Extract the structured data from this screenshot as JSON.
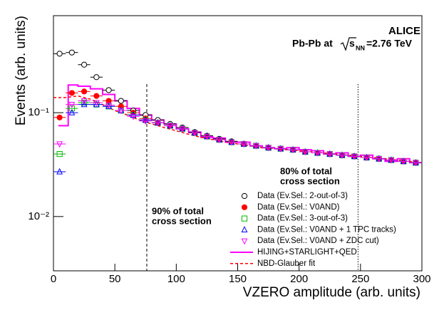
{
  "chart_data": {
    "type": "scatter",
    "experiment": "ALICE",
    "system": {
      "prefix": "Pb-Pb at",
      "s": "s",
      "sub": "NN",
      "suffix": "=2.76 TeV"
    },
    "xlabel": "VZERO amplitude (arb. units)",
    "ylabel": "Events (arb. units)",
    "xlim": [
      0,
      300
    ],
    "xticks": [
      0,
      50,
      100,
      150,
      200,
      250,
      300
    ],
    "ylim": [
      0.003,
      0.86
    ],
    "log_y": true,
    "yticks": [
      {
        "value": 0.01,
        "label": "10⁻²"
      },
      {
        "value": 0.1,
        "label": "10⁻¹"
      }
    ],
    "x": [
      5,
      15,
      25,
      35,
      45,
      55,
      65,
      75,
      85,
      95,
      105,
      115,
      125,
      135,
      145,
      155,
      165,
      175,
      185,
      195,
      205,
      215,
      225,
      235,
      245,
      255,
      265,
      275,
      285,
      295
    ],
    "xerr": 5,
    "series": [
      {
        "name": "Data (Ev.Sel.: 2-out-of-3)",
        "color": "#000000",
        "marker": "open-circle",
        "values": [
          0.37,
          0.38,
          0.29,
          0.22,
          0.165,
          0.13,
          0.105,
          0.095,
          0.085,
          0.078,
          0.072,
          0.065,
          0.06,
          0.056,
          0.053,
          0.05,
          0.048,
          0.046,
          0.045,
          0.044,
          0.042,
          0.041,
          0.04,
          0.039,
          0.038,
          0.037,
          0.036,
          0.035,
          0.034,
          0.033
        ]
      },
      {
        "name": "Data (Ev.Sel.: V0AND)",
        "color": "#ff0000",
        "marker": "filled-circle",
        "values": [
          0.09,
          0.155,
          0.16,
          0.145,
          0.13,
          0.115,
          0.1,
          0.088,
          0.08,
          0.075,
          0.07,
          0.064,
          0.059,
          0.055,
          0.052,
          0.05,
          0.048,
          0.046,
          0.045,
          0.044,
          0.042,
          0.041,
          0.04,
          0.039,
          0.038,
          0.037,
          0.036,
          0.035,
          0.034,
          0.033
        ]
      },
      {
        "name": "Data (Ev.Sel.: 3-out-of-3)",
        "color": "#00bb00",
        "marker": "open-square",
        "values": [
          0.04,
          0.11,
          0.125,
          0.12,
          0.115,
          0.105,
          0.095,
          0.085,
          0.08,
          0.075,
          0.07,
          0.064,
          0.059,
          0.055,
          0.052,
          0.05,
          0.048,
          0.046,
          0.045,
          0.044,
          0.042,
          0.041,
          0.04,
          0.039,
          0.038,
          0.037,
          0.036,
          0.035,
          0.034,
          0.033
        ]
      },
      {
        "name": "Data (Ev.Sel.: V0AND + 1 TPC tracks)",
        "color": "#0000ff",
        "marker": "open-triangle-up",
        "values": [
          0.027,
          0.1,
          0.12,
          0.12,
          0.115,
          0.105,
          0.095,
          0.085,
          0.08,
          0.075,
          0.07,
          0.064,
          0.059,
          0.055,
          0.052,
          0.05,
          0.048,
          0.046,
          0.045,
          0.044,
          0.042,
          0.041,
          0.04,
          0.039,
          0.038,
          0.037,
          0.036,
          0.035,
          0.034,
          0.033
        ]
      },
      {
        "name": "Data (Ev.Sel.: V0AND + ZDC cut)",
        "color": "#ff00ff",
        "marker": "open-triangle-down",
        "values": [
          0.05,
          0.12,
          0.13,
          0.125,
          0.118,
          0.105,
          0.092,
          0.083,
          0.08,
          0.075,
          0.07,
          0.064,
          0.059,
          0.055,
          0.052,
          0.05,
          0.048,
          0.046,
          0.045,
          0.044,
          0.042,
          0.041,
          0.04,
          0.039,
          0.038,
          0.037,
          0.036,
          0.035,
          0.034,
          0.033
        ]
      }
    ],
    "hist": {
      "name": "HIJING+STARLIGHT+QED",
      "color": "#ff00ff",
      "bins": [
        4,
        12,
        20,
        30,
        40,
        50,
        60,
        70,
        80,
        90,
        100,
        110,
        120,
        130,
        140,
        150,
        160,
        170,
        180,
        190,
        200,
        210,
        220,
        230,
        240,
        250,
        260,
        270,
        280,
        290,
        300
      ],
      "values": [
        0.075,
        0.185,
        0.18,
        0.17,
        0.15,
        0.13,
        0.11,
        0.095,
        0.085,
        0.078,
        0.07,
        0.065,
        0.058,
        0.057,
        0.052,
        0.052,
        0.048,
        0.046,
        0.045,
        0.046,
        0.044,
        0.043,
        0.04,
        0.041,
        0.038,
        0.039,
        0.036,
        0.034,
        0.036,
        0.033
      ]
    },
    "fit": {
      "name": "NBD-Glauber fit",
      "color": "#ff0000",
      "x": [
        0,
        10,
        20,
        30,
        40,
        50,
        60,
        70,
        80,
        90,
        100,
        110,
        120,
        130,
        140,
        150,
        160,
        170,
        180,
        190,
        200,
        210,
        220,
        230,
        240,
        250,
        260,
        270,
        280,
        290,
        300
      ],
      "values": [
        0.14,
        0.14,
        0.145,
        0.135,
        0.12,
        0.105,
        0.095,
        0.085,
        0.078,
        0.072,
        0.067,
        0.062,
        0.058,
        0.055,
        0.052,
        0.05,
        0.048,
        0.046,
        0.045,
        0.044,
        0.043,
        0.042,
        0.041,
        0.04,
        0.039,
        0.038,
        0.037,
        0.036,
        0.035,
        0.034,
        0.033
      ]
    },
    "cuts": [
      {
        "x": 76,
        "lines": [
          "90% of total",
          "cross section"
        ]
      },
      {
        "x": 248,
        "lines": [
          "80% of total",
          "cross section"
        ]
      }
    ]
  }
}
